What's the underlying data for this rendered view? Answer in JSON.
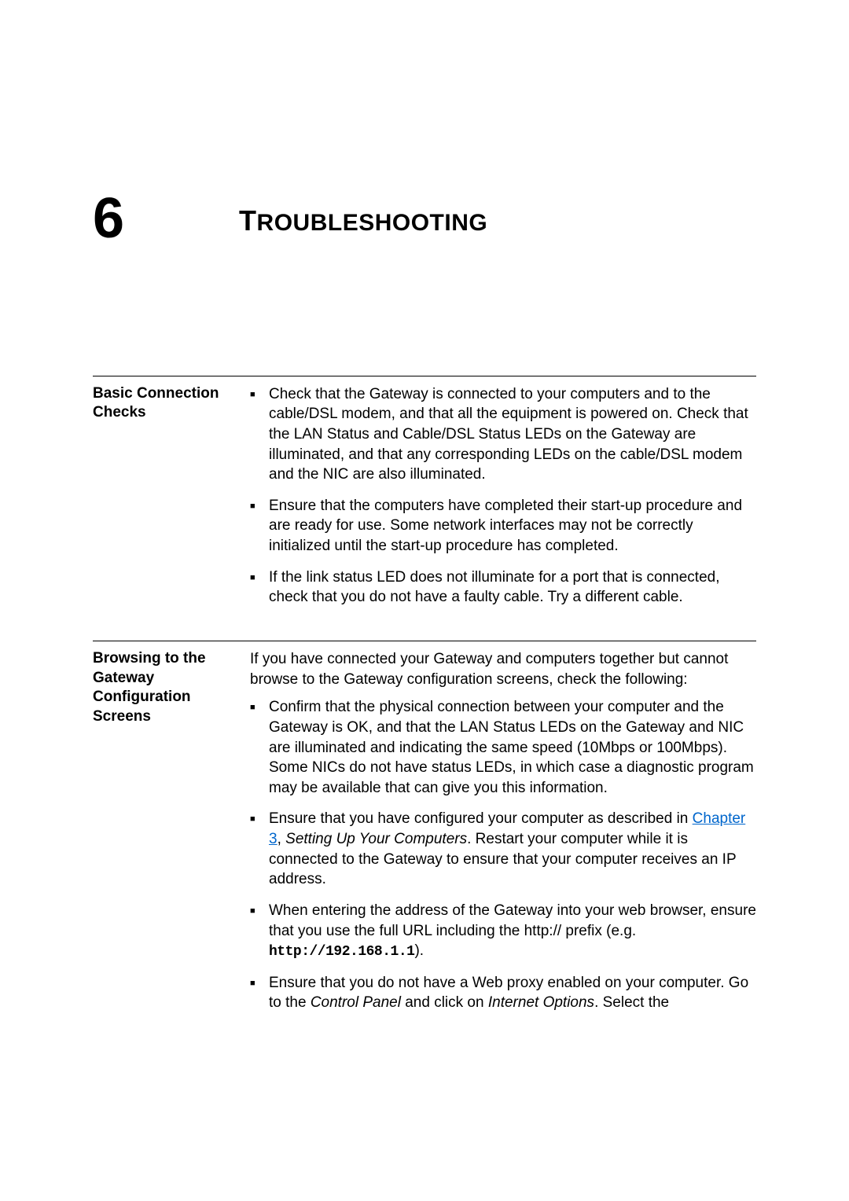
{
  "chapter": {
    "number": "6",
    "title_first": "T",
    "title_rest": "ROUBLESHOOTING"
  },
  "sections": [
    {
      "label": "Basic Connection Checks",
      "intro": null,
      "bullets": [
        {
          "parts": [
            {
              "type": "text",
              "content": "Check that the Gateway is connected to your computers and to the cable/DSL modem, and that all the equipment is powered on. Check that the LAN Status and Cable/DSL Status LEDs on the Gateway are illuminated, and that any corresponding LEDs on the cable/DSL modem and the NIC are also illuminated."
            }
          ]
        },
        {
          "parts": [
            {
              "type": "text",
              "content": "Ensure that the computers have completed their start-up procedure and are ready for use. Some network interfaces may not be correctly initialized until the start-up procedure has completed."
            }
          ]
        },
        {
          "parts": [
            {
              "type": "text",
              "content": "If the link status LED does not illuminate for a port that is connected, check that you do not have a faulty cable. Try a different cable."
            }
          ]
        }
      ]
    },
    {
      "label": "Browsing to the Gateway Configuration Screens",
      "intro": "If you have connected your Gateway and computers together but cannot browse to the Gateway configuration screens, check the following:",
      "bullets": [
        {
          "parts": [
            {
              "type": "text",
              "content": "Confirm that the physical connection between your computer and the Gateway is OK, and that the LAN Status LEDs on the Gateway and NIC are illuminated and indicating the same speed (10Mbps or 100Mbps). Some NICs do not have status LEDs, in which case a diagnostic program may be available that can give you this information."
            }
          ]
        },
        {
          "parts": [
            {
              "type": "text",
              "content": "Ensure that you have configured your computer as described in "
            },
            {
              "type": "link",
              "content": "Chapter 3"
            },
            {
              "type": "text",
              "content": ", "
            },
            {
              "type": "italic",
              "content": "Setting Up Your Computers"
            },
            {
              "type": "text",
              "content": ". Restart your computer while it is connected to the Gateway to ensure that your computer receives an IP address."
            }
          ]
        },
        {
          "parts": [
            {
              "type": "text",
              "content": "When entering the address of the Gateway into your web browser, ensure that you use the full URL including the http:// prefix (e.g. "
            },
            {
              "type": "mono",
              "content": "http://192.168.1.1"
            },
            {
              "type": "text",
              "content": ")."
            }
          ]
        },
        {
          "parts": [
            {
              "type": "text",
              "content": "Ensure that you do not have a Web proxy enabled on your computer. Go to the "
            },
            {
              "type": "italic",
              "content": "Control Panel"
            },
            {
              "type": "text",
              "content": " and click on "
            },
            {
              "type": "italic",
              "content": "Internet Options"
            },
            {
              "type": "text",
              "content": ". Select the"
            }
          ]
        }
      ]
    }
  ]
}
